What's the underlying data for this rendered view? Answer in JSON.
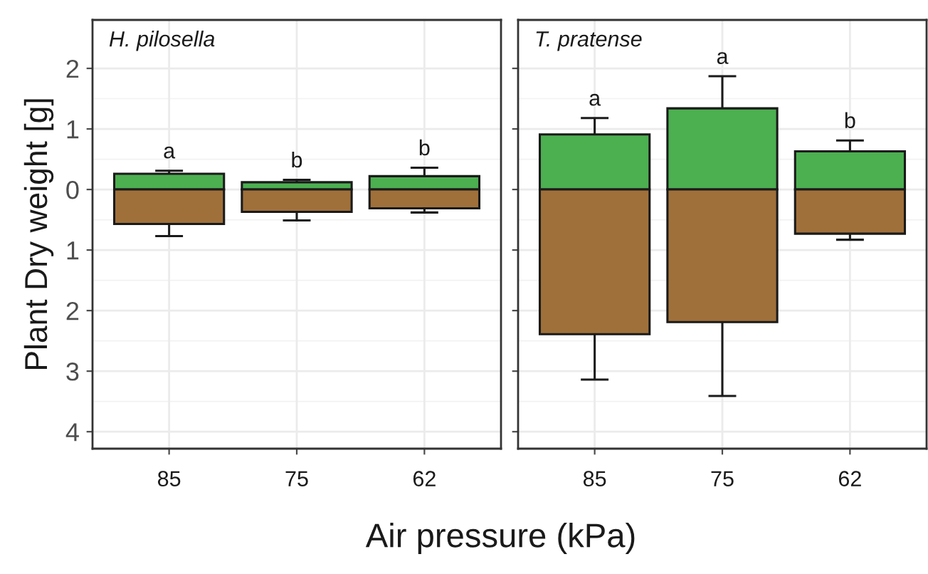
{
  "chart_data": [
    {
      "type": "bar",
      "stacked": true,
      "title": "H. pilosella",
      "ylabel": "Plant Dry weight [g]",
      "xlabel": "Air pressure (kPa)",
      "categories": [
        "85",
        "75",
        "62"
      ],
      "series": [
        {
          "color": "#4caf50",
          "values": [
            0.26,
            0.12,
            0.22
          ],
          "errors": [
            [
              0.26,
              0.31
            ],
            [
              0.12,
              0.16
            ],
            [
              0.22,
              0.36
            ]
          ]
        },
        {
          "color": "#a0703a",
          "values": [
            -0.57,
            -0.37,
            -0.31
          ],
          "errors": [
            [
              -0.77,
              -0.57
            ],
            [
              -0.51,
              -0.37
            ],
            [
              -0.38,
              -0.31
            ]
          ]
        }
      ],
      "annotations": [
        {
          "text": "a",
          "x": "85",
          "y": 0.31
        },
        {
          "text": "b",
          "x": "75",
          "y": 0.16
        },
        {
          "text": "b",
          "x": "62",
          "y": 0.36
        }
      ],
      "ylim": [
        -4.28,
        2.8
      ],
      "yticks": [
        {
          "value": -4,
          "label": "4"
        },
        {
          "value": -3,
          "label": "3"
        },
        {
          "value": -2,
          "label": "2"
        },
        {
          "value": -1,
          "label": "1"
        },
        0,
        1,
        2
      ],
      "grid": true
    },
    {
      "type": "bar",
      "stacked": true,
      "title": "T. pratense",
      "categories": [
        "85",
        "75",
        "62"
      ],
      "series": [
        {
          "color": "#4caf50",
          "values": [
            0.91,
            1.34,
            0.63
          ],
          "errors": [
            [
              0.91,
              1.18
            ],
            [
              1.34,
              1.87
            ],
            [
              0.63,
              0.81
            ]
          ]
        },
        {
          "color": "#a0703a",
          "values": [
            -2.39,
            -2.19,
            -0.73
          ],
          "errors": [
            [
              -3.14,
              -2.39
            ],
            [
              -3.41,
              -2.19
            ],
            [
              -0.83,
              -0.73
            ]
          ]
        }
      ],
      "annotations": [
        {
          "text": "a",
          "x": "85",
          "y": 1.18
        },
        {
          "text": "a",
          "x": "75",
          "y": 1.87
        },
        {
          "text": "b",
          "x": "62",
          "y": 0.81
        }
      ],
      "ylim": [
        -4.28,
        2.8
      ],
      "yticks": [
        {
          "value": -4,
          "label": null
        },
        {
          "value": -3,
          "label": null
        },
        {
          "value": -2,
          "label": null
        },
        {
          "value": -1,
          "label": null
        },
        {
          "value": 0,
          "label": null
        },
        {
          "value": 1,
          "label": null
        },
        {
          "value": 2,
          "label": null
        }
      ],
      "grid": true,
      "tick_labels": "x"
    }
  ]
}
